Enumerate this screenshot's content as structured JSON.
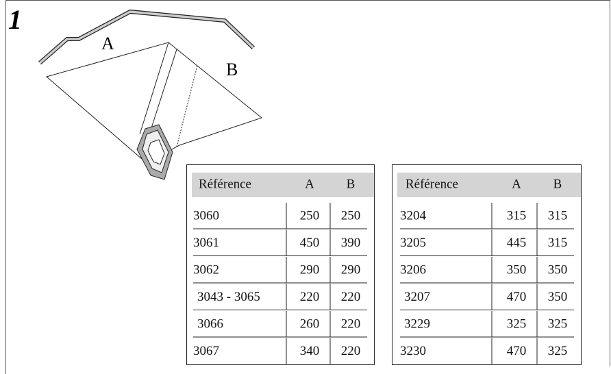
{
  "step": "1",
  "diagram": {
    "labels": [
      "A",
      "B"
    ]
  },
  "tables": [
    {
      "header": [
        "Référence",
        "A",
        "B"
      ],
      "rows": [
        [
          "3060",
          "250",
          "250"
        ],
        [
          "3061",
          "450",
          "390"
        ],
        [
          "3062",
          "290",
          "290"
        ],
        [
          "3043 - 3065",
          "220",
          "220"
        ],
        [
          "3066",
          "260",
          "220"
        ],
        [
          "3067",
          "340",
          "220"
        ]
      ]
    },
    {
      "header": [
        "Référence",
        "A",
        "B"
      ],
      "rows": [
        [
          "3204",
          "315",
          "315"
        ],
        [
          "3205",
          "445",
          "315"
        ],
        [
          "3206",
          "350",
          "350"
        ],
        [
          "3207",
          "470",
          "350"
        ],
        [
          "3229",
          "325",
          "325"
        ],
        [
          "3230",
          "470",
          "325"
        ]
      ]
    }
  ]
}
